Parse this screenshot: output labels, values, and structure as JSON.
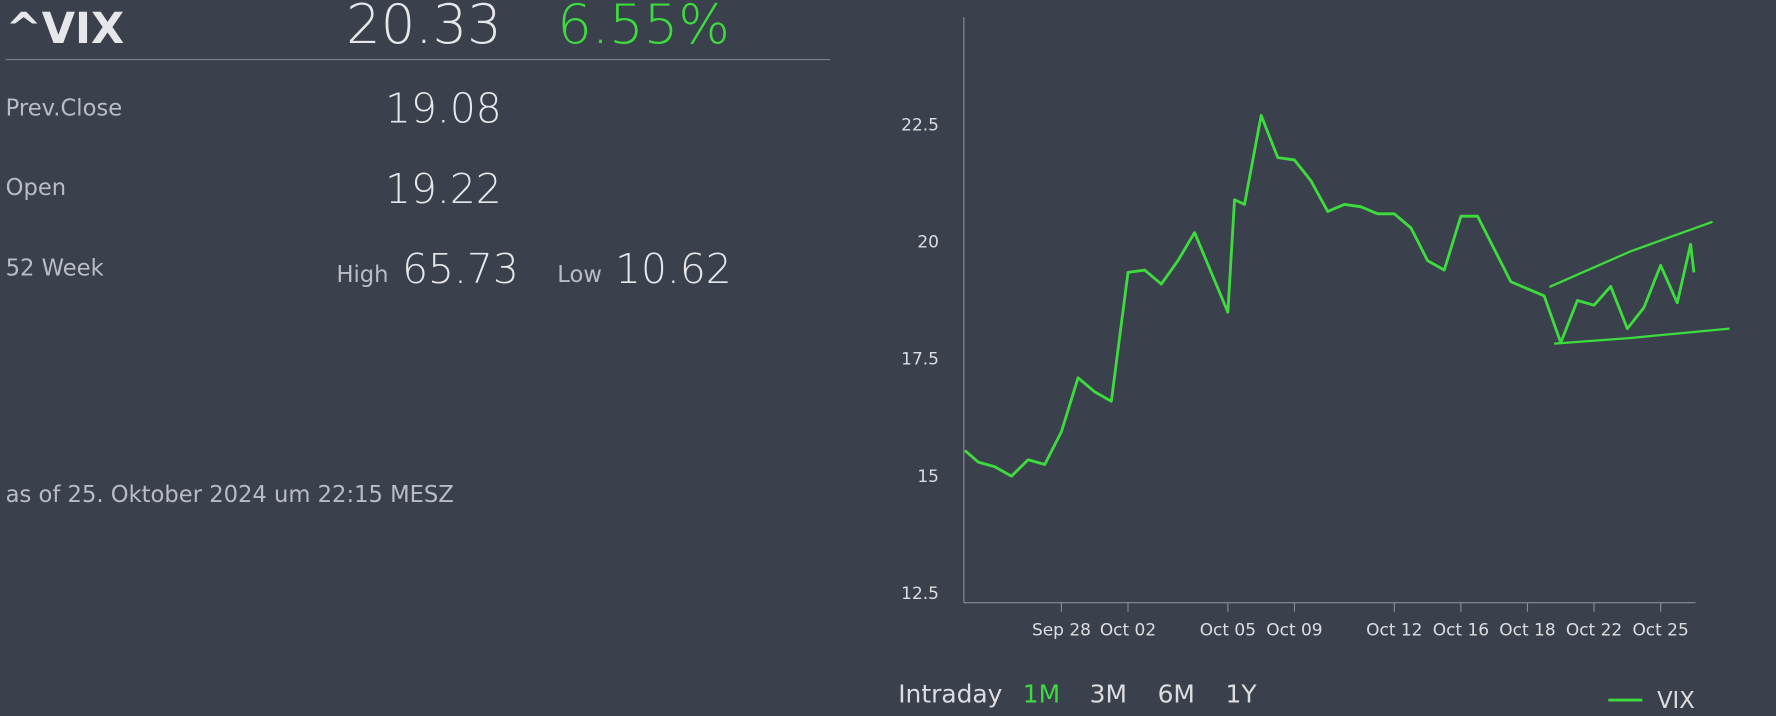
{
  "quote": {
    "symbol": "^VIX",
    "last": "20.33",
    "change_pct": "6.55%",
    "rows": [
      {
        "label": "Prev.Close",
        "value": "19.08"
      },
      {
        "label": "Open",
        "value": "19.22"
      }
    ],
    "week52": {
      "label": "52 Week",
      "high_label": "High",
      "high": "65.73",
      "low_label": "Low",
      "low": "10.62"
    },
    "timestamp": "as of 25. Oktober 2024 um 22:15 MESZ"
  },
  "range_buttons": {
    "items": [
      "Intraday",
      "1M",
      "3M",
      "6M",
      "1Y"
    ],
    "active": 1
  },
  "chart_data": {
    "type": "line",
    "x": [
      -2.9,
      -2.5,
      -2,
      -1.5,
      -1,
      -0.5,
      0,
      0.5,
      1,
      1.5,
      2,
      2.5,
      3,
      3.5,
      4,
      4.5,
      5,
      5.2,
      5.5,
      6,
      6.5,
      7,
      7.5,
      8,
      8.5,
      9,
      9.5,
      10,
      10.5,
      11,
      11.5,
      12,
      12.5,
      13,
      13.5,
      14,
      14.5,
      15,
      15.5,
      16,
      16.5,
      17,
      17.5,
      18,
      18.5,
      18.9,
      19.0
    ],
    "series": [
      {
        "name": "VIX",
        "color": "#3ddc3d",
        "values": [
          15.55,
          15.3,
          15.2,
          15.0,
          15.35,
          15.25,
          15.95,
          17.1,
          16.8,
          16.6,
          19.35,
          19.4,
          19.1,
          19.6,
          20.2,
          19.35,
          18.5,
          20.9,
          20.8,
          22.7,
          21.8,
          21.75,
          21.3,
          20.65,
          20.8,
          20.75,
          20.6,
          20.6,
          20.3,
          19.6,
          19.4,
          20.55,
          20.55,
          19.85,
          19.15,
          19.0,
          18.85,
          17.85,
          18.75,
          18.65,
          19.05,
          18.15,
          18.6,
          19.5,
          18.7,
          19.95,
          19.35
        ]
      }
    ],
    "trendlines": [
      {
        "x": [
          14.66,
          17.1,
          19.56
        ],
        "y": [
          19.04,
          19.8,
          20.43
        ]
      },
      {
        "x": [
          14.8,
          17.1,
          20.07
        ],
        "y": [
          17.83,
          17.95,
          18.15
        ]
      }
    ],
    "xlim": [
      -2.93,
      19.05
    ],
    "xticks": [
      {
        "value": 0,
        "label": "Sep 28"
      },
      {
        "value": 2,
        "label": "Oct 02"
      },
      {
        "value": 5,
        "label": "Oct 05"
      },
      {
        "value": 7,
        "label": "Oct 09"
      },
      {
        "value": 10,
        "label": "Oct 12"
      },
      {
        "value": 12,
        "label": "Oct 16"
      },
      {
        "value": 14,
        "label": "Oct 18"
      },
      {
        "value": 16,
        "label": "Oct 22"
      },
      {
        "value": 18,
        "label": "Oct 25"
      }
    ],
    "ylim": [
      12.3,
      24.8
    ],
    "yticks": [
      12.5,
      15,
      17.5,
      20,
      22.5
    ],
    "grid": false,
    "legend": "bottom-right"
  }
}
